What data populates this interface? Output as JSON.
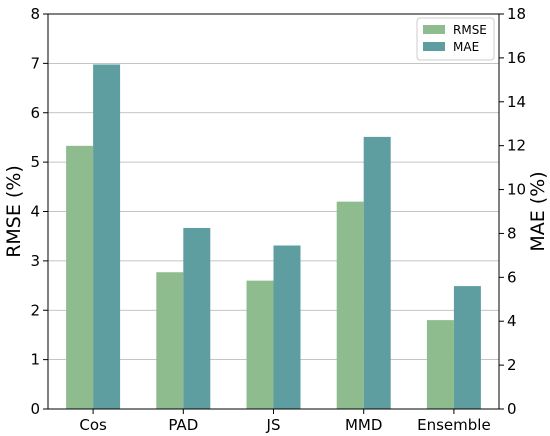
{
  "chart_data": {
    "type": "bar",
    "categories": [
      "Cos",
      "PAD",
      "JS",
      "MMD",
      "Ensemble"
    ],
    "series": [
      {
        "name": "RMSE",
        "axis": "left",
        "color": "#8fbc8f",
        "values": [
          5.33,
          2.77,
          2.6,
          4.2,
          1.8
        ]
      },
      {
        "name": "MAE",
        "axis": "right",
        "color": "#5f9ea0",
        "values": [
          15.7,
          8.25,
          7.45,
          12.4,
          5.6
        ]
      }
    ],
    "ylabel": "RMSE (%)",
    "y2label": "MAE (%)",
    "ylim": [
      0,
      8
    ],
    "y2lim": [
      0,
      18
    ],
    "yticks": [
      0,
      1,
      2,
      3,
      4,
      5,
      6,
      7,
      8
    ],
    "y2ticks": [
      0,
      2,
      4,
      6,
      8,
      10,
      12,
      14,
      16,
      18
    ],
    "grid": true,
    "legend_position": "top-right"
  }
}
